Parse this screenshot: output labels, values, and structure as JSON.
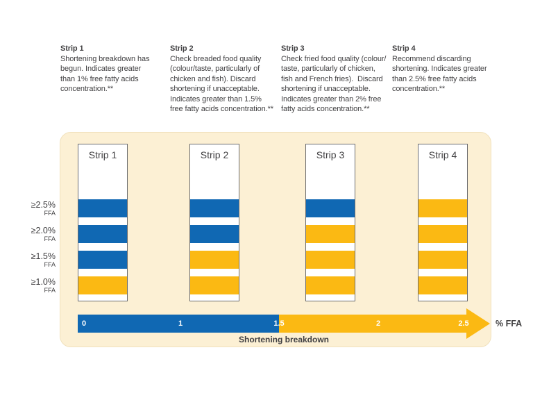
{
  "colors": {
    "blue": "#1068B3",
    "yellow": "#FBB913",
    "panel_bg": "#FCF0D4",
    "text": "#414042"
  },
  "columns": [
    {
      "heading": "Strip 1",
      "body": "Shortening breakdown has\nbegun. Indicates greater\nthan 1% free fatty acids\nconcentration.**"
    },
    {
      "heading": "Strip 2",
      "body": "Check breaded food quality\n(colour/taste, particularly of\nchicken and fish). Discard\nshortening if unacceptable.\nIndicates greater than 1.5%\nfree fatty acids concentration.**"
    },
    {
      "heading": "Strip 3",
      "body": "Check fried food quality (colour/\ntaste, particularly of chicken,\nfish and French fries).  Discard\nshortening if unacceptable.\nIndicates greater than 2% free\nfatty acids concentration.**"
    },
    {
      "heading": "Strip 4",
      "body": "Recommend discarding\nshortening. Indicates greater\nthan 2.5% free fatty acids\nconcentration.**"
    }
  ],
  "axis_labels": [
    {
      "main": "≥2.5%",
      "sub": "FFA"
    },
    {
      "main": "≥2.0%",
      "sub": "FFA"
    },
    {
      "main": "≥1.5%",
      "sub": "FFA"
    },
    {
      "main": "≥1.0%",
      "sub": "FFA"
    }
  ],
  "strips": [
    {
      "label": "Strip 1",
      "bands": [
        "blue",
        "blue",
        "blue",
        "yellow"
      ]
    },
    {
      "label": "Strip 2",
      "bands": [
        "blue",
        "blue",
        "yellow",
        "yellow"
      ]
    },
    {
      "label": "Strip 3",
      "bands": [
        "blue",
        "yellow",
        "yellow",
        "yellow"
      ]
    },
    {
      "label": "Strip 4",
      "bands": [
        "yellow",
        "yellow",
        "yellow",
        "yellow"
      ]
    }
  ],
  "arrow": {
    "ticks": [
      "0",
      "1",
      "1.5",
      "2",
      "2.5"
    ],
    "unit_label": "% FFA",
    "caption": "Shortening breakdown"
  },
  "chart_data": {
    "type": "heatmap",
    "title": "Shortening breakdown test strips",
    "xlabel": "% FFA",
    "x_ticks": [
      0,
      1,
      1.5,
      2,
      2.5
    ],
    "categories": [
      "Strip 1",
      "Strip 2",
      "Strip 3",
      "Strip 4"
    ],
    "band_levels": [
      "≥2.5% FFA",
      "≥2.0% FFA",
      "≥1.5% FFA",
      "≥1.0% FFA"
    ],
    "series": [
      {
        "name": "Strip 1",
        "values": [
          "blue",
          "blue",
          "blue",
          "yellow"
        ]
      },
      {
        "name": "Strip 2",
        "values": [
          "blue",
          "blue",
          "yellow",
          "yellow"
        ]
      },
      {
        "name": "Strip 3",
        "values": [
          "blue",
          "yellow",
          "yellow",
          "yellow"
        ]
      },
      {
        "name": "Strip 4",
        "values": [
          "yellow",
          "yellow",
          "yellow",
          "yellow"
        ]
      }
    ],
    "axis_color_segments": [
      {
        "from": 0,
        "to": 1.5,
        "color": "blue"
      },
      {
        "from": 1.5,
        "to": 2.5,
        "color": "yellow"
      }
    ]
  }
}
